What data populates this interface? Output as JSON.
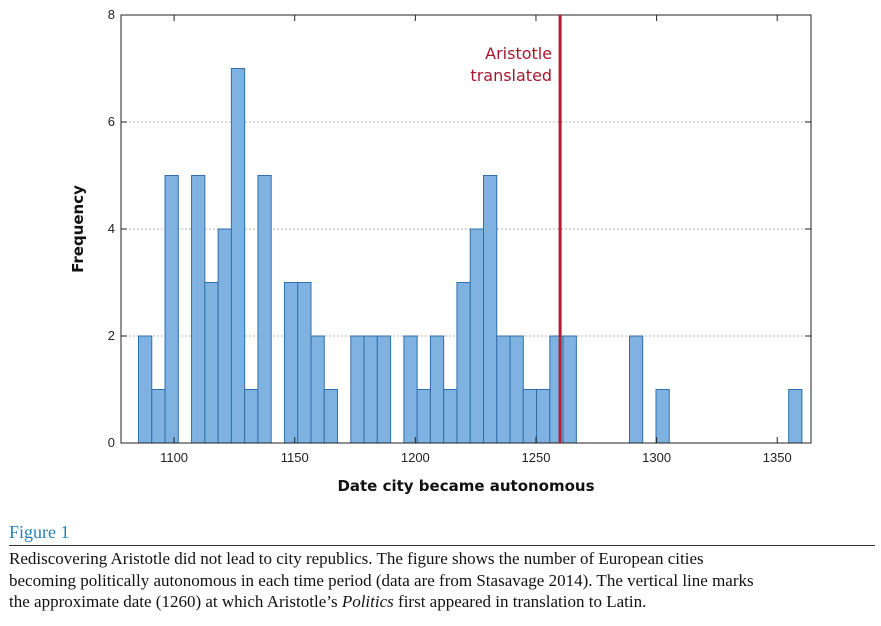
{
  "chart_data": {
    "type": "bar",
    "xlabel": "Date city became autonomous",
    "ylabel": "Frequency",
    "xlim": [
      1078,
      1364
    ],
    "ylim": [
      0,
      8
    ],
    "x_ticks": [
      1100,
      1150,
      1200,
      1250,
      1300,
      1350
    ],
    "y_ticks": [
      0,
      2,
      4,
      6,
      8
    ],
    "grid": "horizontal dashed at y ticks",
    "bin_width": 5.5,
    "bar_color": "#7fb2e0",
    "bar_edge_color": "#2f6fad",
    "bins": [
      {
        "x": 1088.0,
        "value": 2
      },
      {
        "x": 1093.5,
        "value": 1
      },
      {
        "x": 1099.0,
        "value": 5
      },
      {
        "x": 1110.0,
        "value": 5
      },
      {
        "x": 1115.5,
        "value": 3
      },
      {
        "x": 1121.0,
        "value": 4
      },
      {
        "x": 1126.5,
        "value": 7
      },
      {
        "x": 1132.0,
        "value": 1
      },
      {
        "x": 1137.5,
        "value": 5
      },
      {
        "x": 1148.5,
        "value": 3
      },
      {
        "x": 1154.0,
        "value": 3
      },
      {
        "x": 1159.5,
        "value": 2
      },
      {
        "x": 1165.0,
        "value": 1
      },
      {
        "x": 1176.0,
        "value": 2
      },
      {
        "x": 1181.5,
        "value": 2
      },
      {
        "x": 1187.0,
        "value": 2
      },
      {
        "x": 1198.0,
        "value": 2
      },
      {
        "x": 1203.5,
        "value": 1
      },
      {
        "x": 1209.0,
        "value": 2
      },
      {
        "x": 1214.5,
        "value": 1
      },
      {
        "x": 1220.0,
        "value": 3
      },
      {
        "x": 1225.5,
        "value": 4
      },
      {
        "x": 1231.0,
        "value": 5
      },
      {
        "x": 1236.5,
        "value": 2
      },
      {
        "x": 1242.0,
        "value": 2
      },
      {
        "x": 1247.5,
        "value": 1
      },
      {
        "x": 1253.0,
        "value": 1
      },
      {
        "x": 1258.5,
        "value": 2
      },
      {
        "x": 1264.0,
        "value": 2
      },
      {
        "x": 1291.5,
        "value": 2
      },
      {
        "x": 1302.5,
        "value": 1
      },
      {
        "x": 1357.5,
        "value": 1
      }
    ],
    "reference_line": {
      "x": 1260,
      "color": "#b21c2e",
      "label_line1": "Aristotle",
      "label_line2": "translated"
    }
  },
  "caption": {
    "figure_label": "Figure 1",
    "text_line1": "Rediscovering Aristotle did not lead to city republics. The figure shows the number of European cities",
    "text_line2": "becoming politically autonomous in each time period (data are from Stasavage 2014). The vertical line marks",
    "text_line3_before": "the approximate date (1260) at which Aristotle’s ",
    "text_line3_italic": "Politics",
    "text_line3_after": " first appeared in translation to Latin."
  }
}
